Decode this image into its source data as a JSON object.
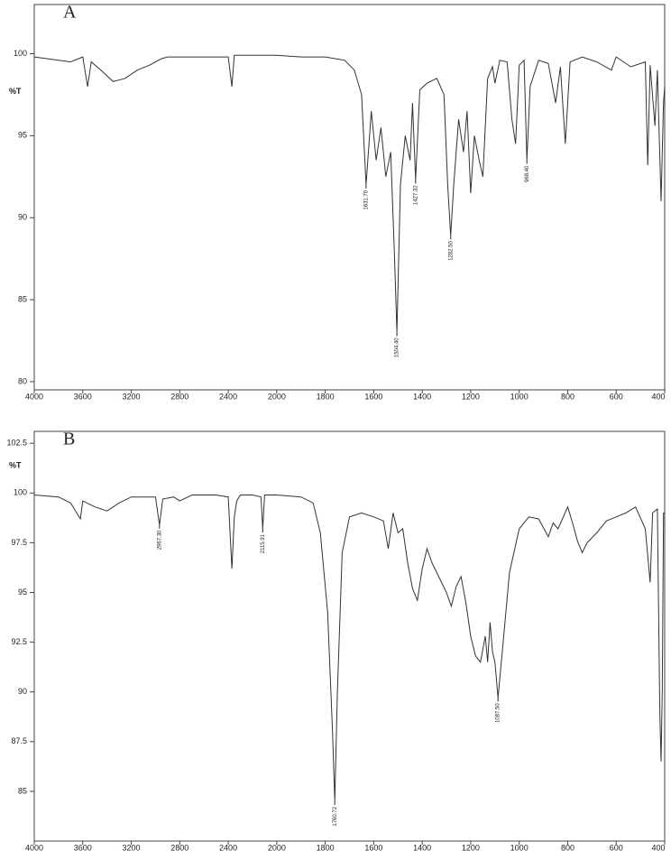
{
  "chart_data": [
    {
      "type": "line",
      "title": "A",
      "ylabel": "%T",
      "color": "#333333",
      "xlim": [
        4000,
        400
      ],
      "ylim": [
        79.5,
        103
      ],
      "xticks": [
        4000,
        3600,
        3200,
        2800,
        2400,
        2000,
        1800,
        1600,
        1400,
        1200,
        1000,
        800,
        600,
        400
      ],
      "yticks": [
        80,
        85,
        90,
        95,
        100
      ],
      "x": [
        4000,
        3800,
        3700,
        3600,
        3560,
        3530,
        3450,
        3350,
        3250,
        3150,
        3050,
        2950,
        2900,
        2800,
        2600,
        2400,
        2370,
        2350,
        2200,
        2000,
        1900,
        1800,
        1720,
        1680,
        1650,
        1631.7,
        1610,
        1590,
        1570,
        1550,
        1530,
        1515,
        1504.4,
        1490,
        1470,
        1450,
        1440,
        1427.3,
        1410,
        1380,
        1340,
        1310,
        1295,
        1282.5,
        1270,
        1250,
        1230,
        1215,
        1200,
        1185,
        1165,
        1150,
        1130,
        1110,
        1100,
        1080,
        1050,
        1030,
        1015,
        1000,
        980,
        968.4,
        955,
        920,
        880,
        850,
        830,
        810,
        790,
        740,
        680,
        620,
        600,
        540,
        480,
        470,
        460,
        440,
        430,
        415,
        405,
        400
      ],
      "values": [
        99.8,
        99.6,
        99.5,
        99.8,
        98.0,
        99.5,
        99.0,
        98.3,
        98.5,
        99.0,
        99.3,
        99.7,
        99.8,
        99.8,
        99.8,
        99.8,
        98.0,
        99.9,
        99.9,
        99.9,
        99.8,
        99.8,
        99.6,
        99.0,
        97.5,
        92.0,
        96.5,
        93.5,
        95.5,
        92.5,
        94.0,
        88.0,
        83.0,
        92.0,
        95.0,
        93.5,
        97.0,
        92.3,
        97.8,
        98.2,
        98.5,
        97.5,
        92.0,
        88.9,
        92.0,
        96.0,
        94.0,
        96.5,
        91.5,
        95.0,
        93.5,
        92.5,
        98.5,
        99.2,
        98.2,
        99.6,
        99.5,
        96.0,
        94.5,
        99.3,
        99.6,
        93.5,
        98.0,
        99.6,
        99.4,
        97.0,
        99.2,
        94.5,
        99.5,
        99.8,
        99.5,
        99.0,
        99.8,
        99.2,
        99.5,
        93.2,
        99.3,
        95.6,
        99.0,
        91.0,
        97.0,
        98.0
      ],
      "annotations": [
        {
          "x": 1631.7,
          "y": 92.0,
          "label": "1631.70"
        },
        {
          "x": 1504.4,
          "y": 83.0,
          "label": "1504.40"
        },
        {
          "x": 1427.32,
          "y": 92.3,
          "label": "1427.32"
        },
        {
          "x": 1282.5,
          "y": 88.9,
          "label": "1282.50"
        },
        {
          "x": 968.4,
          "y": 93.5,
          "label": "968.40"
        }
      ]
    },
    {
      "type": "line",
      "title": "B",
      "ylabel": "%T",
      "color": "#333333",
      "xlim": [
        4000,
        400
      ],
      "ylim": [
        82.5,
        103.1
      ],
      "xticks": [
        4000,
        3600,
        3200,
        2800,
        2400,
        2000,
        1800,
        1600,
        1400,
        1200,
        1000,
        800,
        600,
        400
      ],
      "yticks": [
        85,
        87.5,
        90,
        92.5,
        95,
        97.5,
        100,
        102.5
      ],
      "x": [
        4000,
        3800,
        3700,
        3620,
        3600,
        3500,
        3400,
        3300,
        3200,
        3000,
        2967.3,
        2940,
        2850,
        2800,
        2700,
        2500,
        2400,
        2370,
        2350,
        2330,
        2300,
        2200,
        2130,
        2115.9,
        2100,
        2000,
        1900,
        1850,
        1820,
        1790,
        1770,
        1760.7,
        1750,
        1730,
        1700,
        1650,
        1600,
        1560,
        1540,
        1520,
        1500,
        1480,
        1460,
        1440,
        1420,
        1400,
        1380,
        1360,
        1340,
        1300,
        1280,
        1260,
        1240,
        1220,
        1200,
        1180,
        1160,
        1140,
        1130,
        1120,
        1110,
        1100,
        1087.5,
        1070,
        1040,
        1000,
        960,
        920,
        880,
        860,
        840,
        800,
        780,
        760,
        740,
        720,
        680,
        640,
        600,
        560,
        520,
        480,
        460,
        450,
        430,
        420,
        415,
        410,
        405,
        400
      ],
      "values": [
        99.9,
        99.8,
        99.5,
        98.7,
        99.6,
        99.3,
        99.1,
        99.5,
        99.8,
        99.8,
        98.4,
        99.7,
        99.8,
        99.6,
        99.9,
        99.9,
        99.8,
        96.2,
        98.8,
        99.6,
        99.9,
        99.9,
        99.8,
        98.2,
        99.9,
        99.9,
        99.8,
        99.5,
        98.0,
        94.0,
        88.0,
        84.5,
        90.0,
        97.0,
        98.8,
        99.0,
        98.8,
        98.6,
        97.2,
        99.0,
        98.0,
        98.2,
        96.5,
        95.2,
        94.6,
        96.2,
        97.2,
        96.5,
        96.0,
        95.0,
        94.3,
        95.3,
        95.8,
        94.5,
        92.8,
        91.8,
        91.5,
        92.8,
        91.5,
        93.5,
        92.0,
        91.5,
        89.7,
        92.0,
        96.0,
        98.2,
        98.8,
        98.7,
        97.8,
        98.5,
        98.2,
        99.3,
        98.5,
        97.6,
        97.0,
        97.5,
        98.0,
        98.6,
        98.8,
        99.0,
        99.3,
        98.2,
        95.5,
        99.0,
        99.2,
        89.0,
        86.5,
        90.0,
        99.0,
        99.0
      ],
      "annotations": [
        {
          "x": 2967.3,
          "y": 98.4,
          "label": "2967.30"
        },
        {
          "x": 2115.91,
          "y": 98.2,
          "label": "2115.91"
        },
        {
          "x": 1760.72,
          "y": 84.5,
          "label": "1760.72"
        },
        {
          "x": 1087.5,
          "y": 89.7,
          "label": "1087.50"
        }
      ]
    }
  ]
}
